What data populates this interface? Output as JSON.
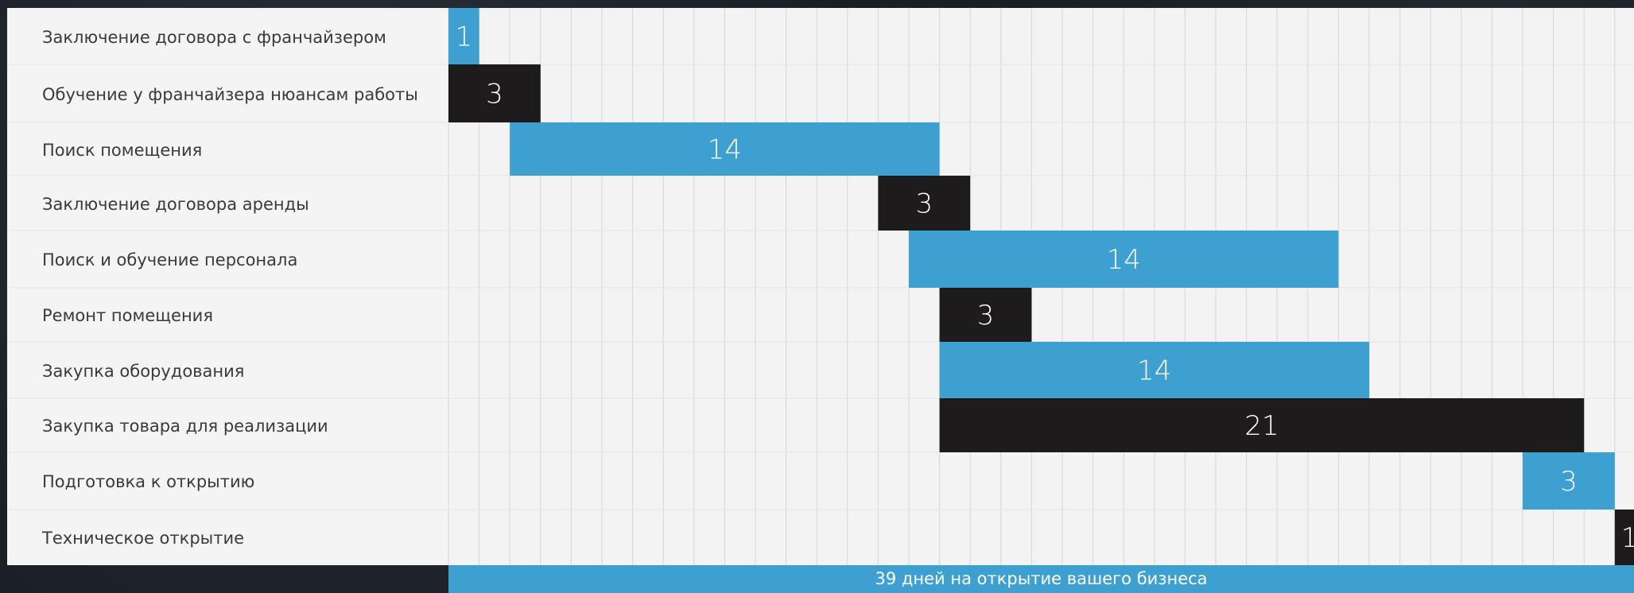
{
  "chart_data": {
    "type": "bar",
    "orientation": "horizontal-gantt",
    "grid": true,
    "colors": {
      "accent": "#3ea0d1",
      "dark": "#1e1b1c",
      "panel": "#f3f3f3"
    },
    "tasks": [
      {
        "label": "Заключение договора с франчайзером",
        "start": 0,
        "duration": 1,
        "value_label": "1",
        "color": "#3ea0d1"
      },
      {
        "label": "Обучение у франчайзера нюансам работы",
        "start": 0,
        "duration": 3,
        "value_label": "3",
        "color": "#1e1b1c"
      },
      {
        "label": "Поиск помещения",
        "start": 2,
        "duration": 14,
        "value_label": "14",
        "color": "#3ea0d1"
      },
      {
        "label": "Заключение договора аренды",
        "start": 14,
        "duration": 3,
        "value_label": "3",
        "color": "#1e1b1c"
      },
      {
        "label": "Поиск и обучение персонала",
        "start": 15,
        "duration": 14,
        "value_label": "14",
        "color": "#3ea0d1"
      },
      {
        "label": "Ремонт помещения",
        "start": 16,
        "duration": 3,
        "value_label": "3",
        "color": "#1e1b1c"
      },
      {
        "label": "Закупка оборудования",
        "start": 16,
        "duration": 14,
        "value_label": "14",
        "color": "#3ea0d1"
      },
      {
        "label": "Закупка товара для реализации",
        "start": 16,
        "duration": 21,
        "value_label": "21",
        "color": "#1e1b1c"
      },
      {
        "label": "Подготовка к открытию",
        "start": 35,
        "duration": 3,
        "value_label": "3",
        "color": "#3ea0d1"
      },
      {
        "label": "Техническое открытие",
        "start": 38,
        "duration": 1,
        "value_label": "1",
        "color": "#1e1b1c"
      }
    ],
    "total_days": 39,
    "footer": "39 дней на открытие вашего бизнеса"
  }
}
